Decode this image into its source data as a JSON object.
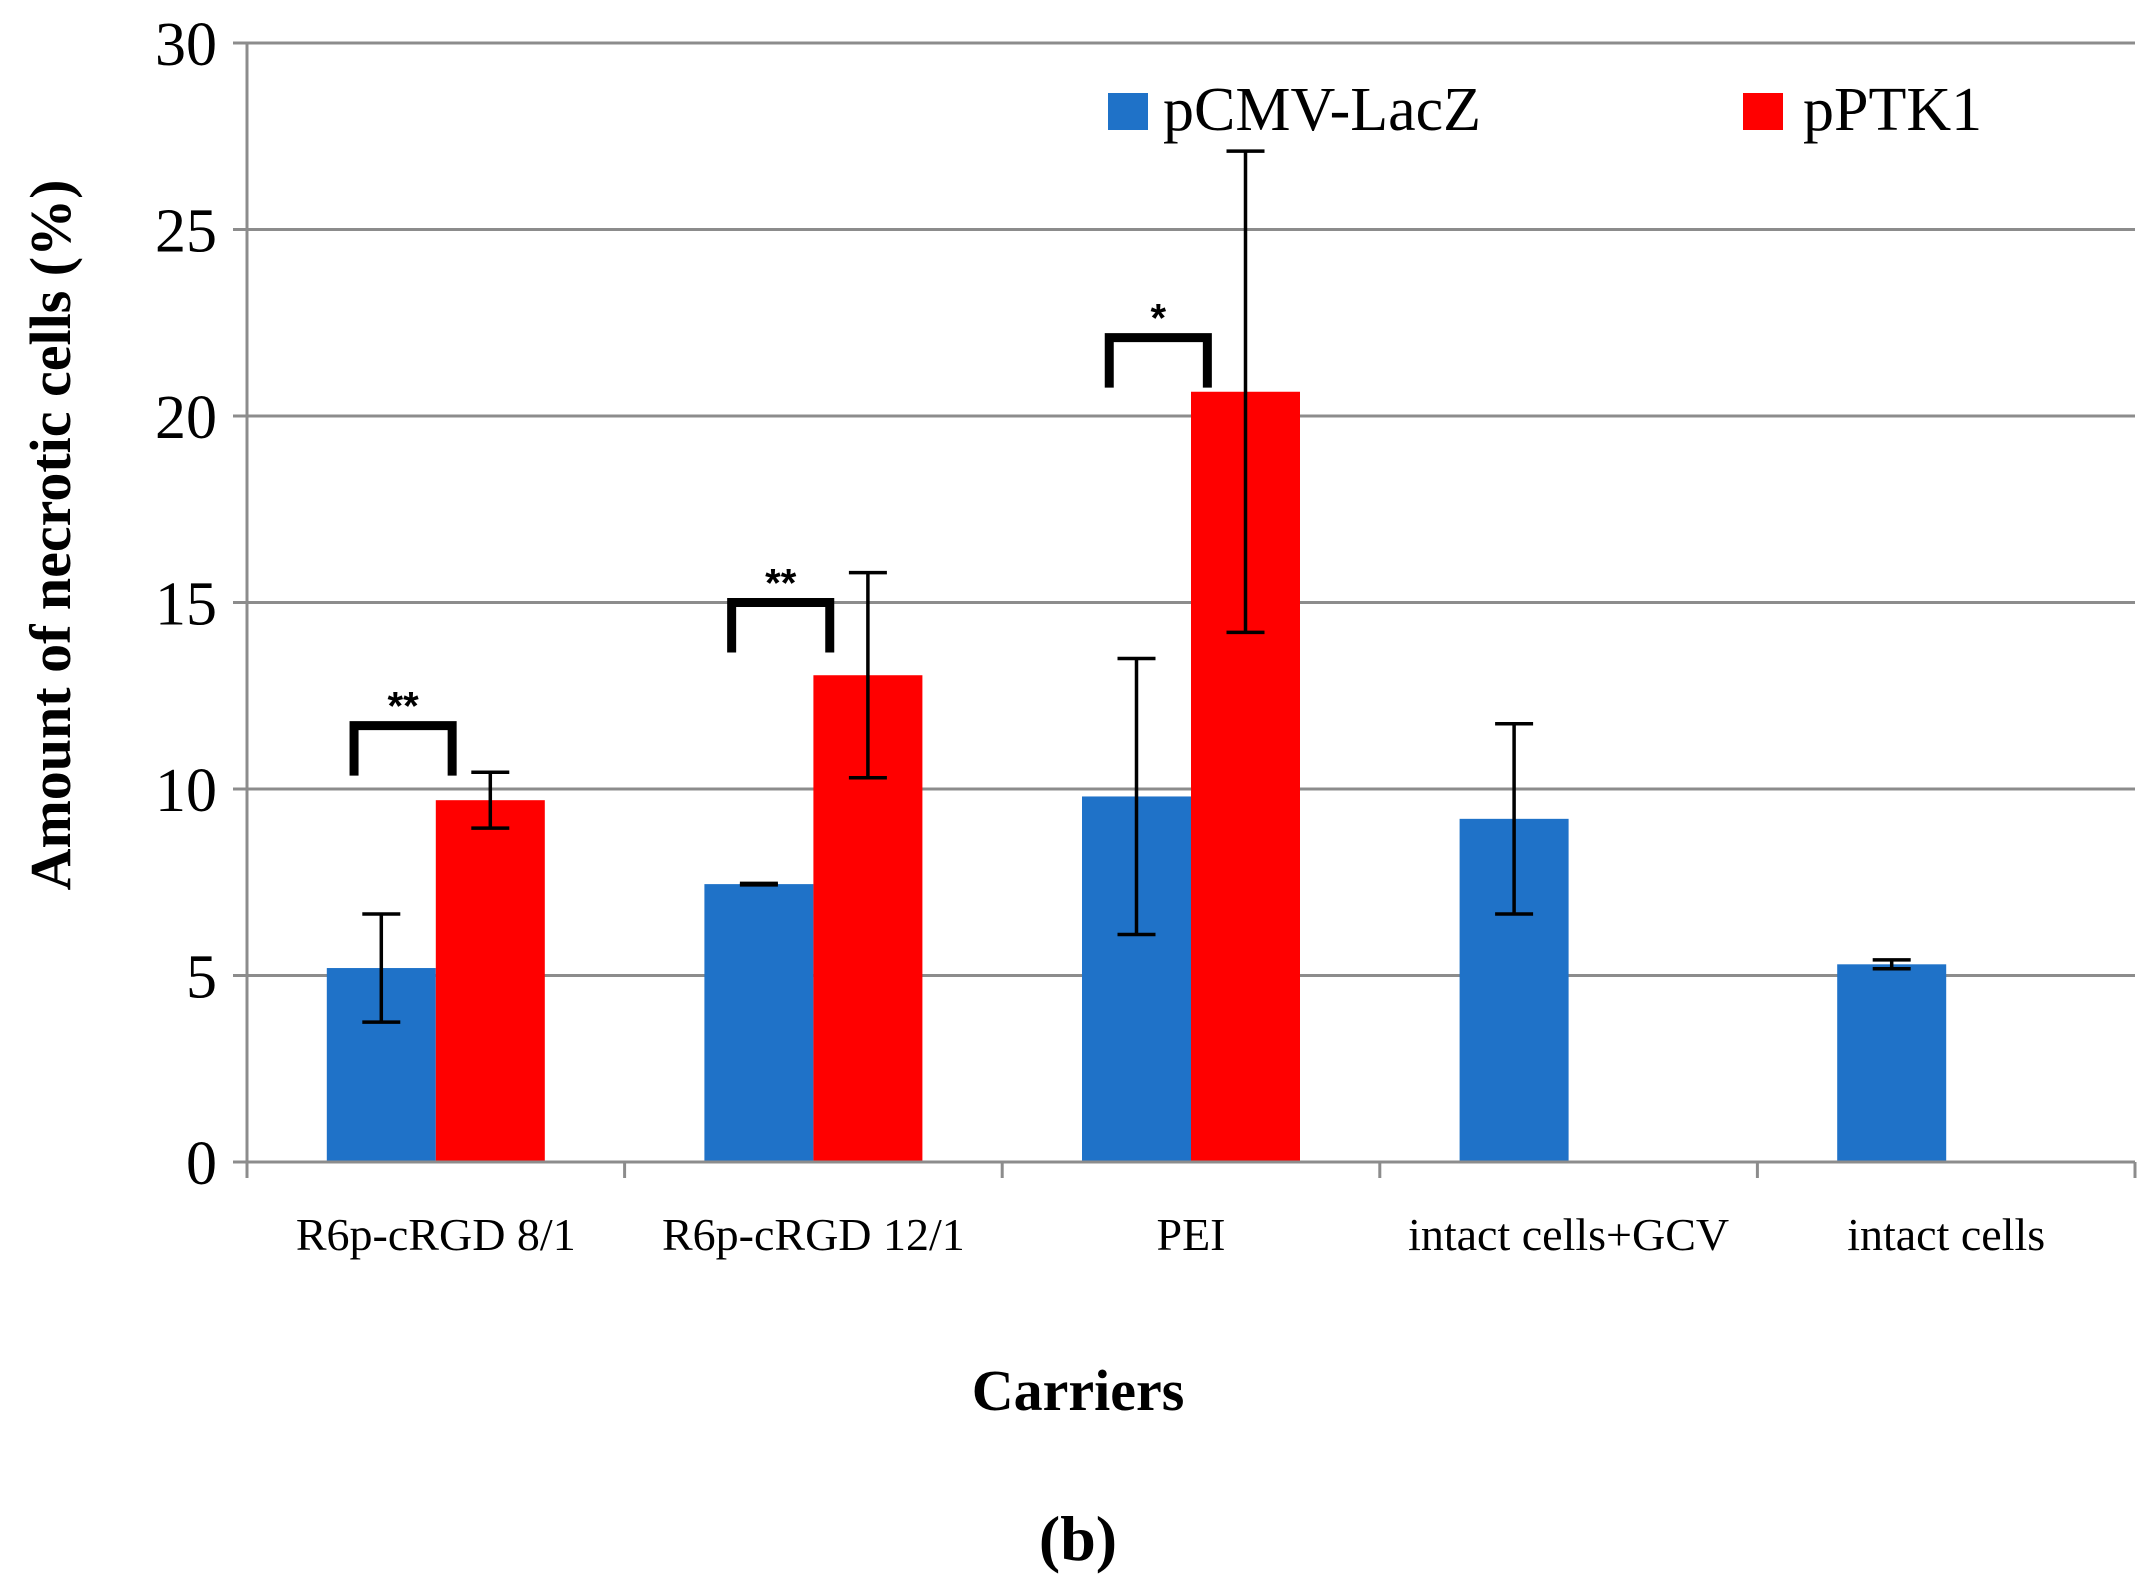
{
  "chart_data": {
    "type": "bar",
    "title": "",
    "xlabel": "Carriers",
    "ylabel": "Amount of necrotic cells (%)",
    "ylim": [
      0,
      30
    ],
    "yticks": [
      0,
      5,
      10,
      15,
      20,
      25,
      30
    ],
    "grid": true,
    "legend_position": "top-right",
    "panel_label": "(b)",
    "categories": [
      "R6p-cRGD 8/1",
      "R6p-cRGD 12/1",
      "PEI",
      "intact cells+GCV",
      "intact cells"
    ],
    "series": [
      {
        "name": "pCMV-LacZ",
        "color": "#1f72c8",
        "values": [
          5.2,
          7.45,
          9.8,
          9.2,
          5.3
        ],
        "errors": [
          1.45,
          0.02,
          3.7,
          2.55,
          0.12
        ]
      },
      {
        "name": "pPTK1",
        "color": "#ff0000",
        "values": [
          9.7,
          13.05,
          20.65,
          null,
          null
        ],
        "errors": [
          0.75,
          2.75,
          6.45,
          null,
          null
        ]
      }
    ],
    "significance": [
      {
        "category": 0,
        "label": "**",
        "level": 11.7
      },
      {
        "category": 1,
        "label": "**",
        "level": 15.0
      },
      {
        "category": 2,
        "label": "*",
        "level": 22.1
      }
    ]
  }
}
